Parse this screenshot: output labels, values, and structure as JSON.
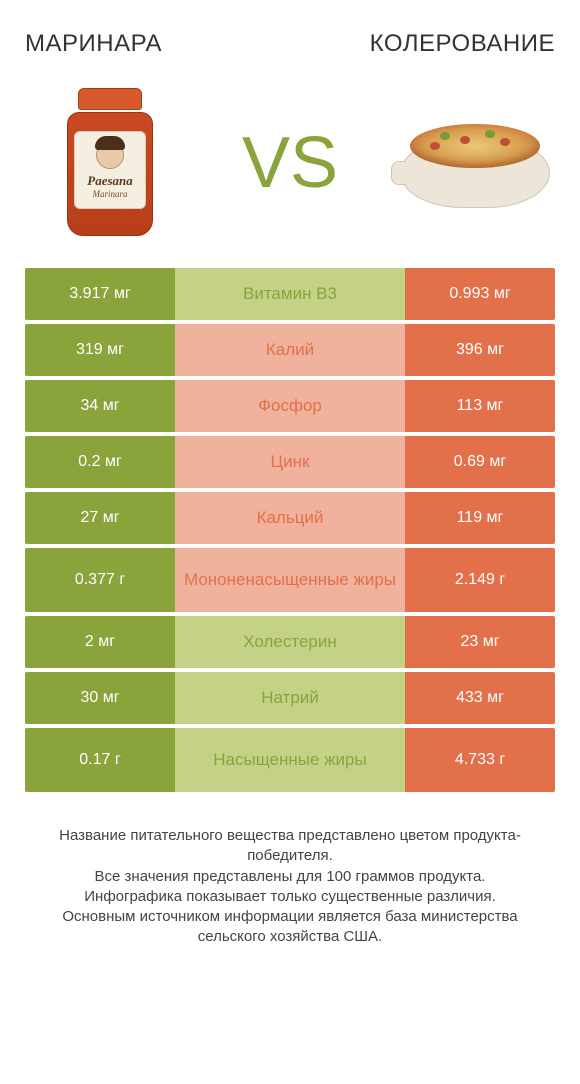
{
  "colors": {
    "green": "#8aa33a",
    "green_light": "#c4d288",
    "orange": "#e2704a",
    "orange_light": "#f0b29c",
    "white": "#ffffff"
  },
  "header": {
    "left": "МАРИНАРА",
    "right": "КОЛЕРОВАНИЕ"
  },
  "jar": {
    "brand": "Paesana",
    "sub": "Marinara"
  },
  "vs": "VS",
  "rows": [
    {
      "left": "3.917 мг",
      "mid": "Витамин B3",
      "right": "0.993 мг",
      "winner": "left",
      "tall": false
    },
    {
      "left": "319 мг",
      "mid": "Калий",
      "right": "396 мг",
      "winner": "right",
      "tall": false
    },
    {
      "left": "34 мг",
      "mid": "Фосфор",
      "right": "113 мг",
      "winner": "right",
      "tall": false
    },
    {
      "left": "0.2 мг",
      "mid": "Цинк",
      "right": "0.69 мг",
      "winner": "right",
      "tall": false
    },
    {
      "left": "27 мг",
      "mid": "Кальций",
      "right": "119 мг",
      "winner": "right",
      "tall": false
    },
    {
      "left": "0.377 г",
      "mid": "Мононенасыщенные жиры",
      "right": "2.149 г",
      "winner": "right",
      "tall": true
    },
    {
      "left": "2 мг",
      "mid": "Холестерин",
      "right": "23 мг",
      "winner": "left",
      "tall": false
    },
    {
      "left": "30 мг",
      "mid": "Натрий",
      "right": "433 мг",
      "winner": "left",
      "tall": false
    },
    {
      "left": "0.17 г",
      "mid": "Насыщенные жиры",
      "right": "4.733 г",
      "winner": "left",
      "tall": true
    }
  ],
  "footer": "Название питательного вещества представлено цветом продукта-победителя.\nВсе значения представлены для 100 граммов продукта.\nИнфографика показывает только существенные различия.\nОсновным источником информации является база министерства сельского хозяйства США."
}
